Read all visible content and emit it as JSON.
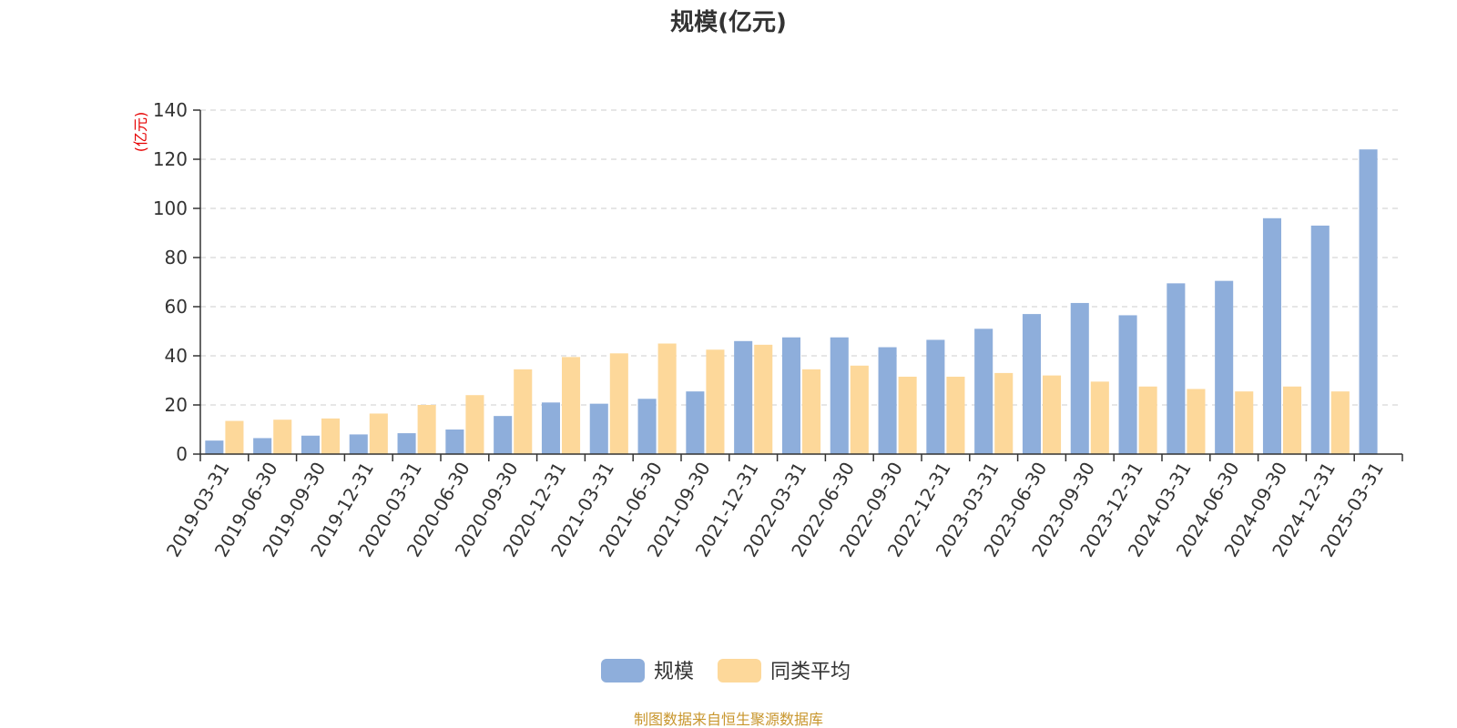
{
  "chart_data": {
    "type": "bar",
    "title": "规模(亿元)",
    "ylabel": "(亿元)",
    "ylim": [
      0,
      140
    ],
    "yticks": [
      0,
      20,
      40,
      60,
      80,
      100,
      120,
      140
    ],
    "grid": true,
    "legend_position": "bottom-center",
    "categories": [
      "2019-03-31",
      "2019-06-30",
      "2019-09-30",
      "2019-12-31",
      "2020-03-31",
      "2020-06-30",
      "2020-09-30",
      "2020-12-31",
      "2021-03-31",
      "2021-06-30",
      "2021-09-30",
      "2021-12-31",
      "2022-03-31",
      "2022-06-30",
      "2022-09-30",
      "2022-12-31",
      "2023-03-31",
      "2023-06-30",
      "2023-09-30",
      "2023-12-31",
      "2024-03-31",
      "2024-06-30",
      "2024-09-30",
      "2024-12-31",
      "2025-03-31"
    ],
    "series": [
      {
        "name": "规模",
        "color": "#8eaedb",
        "values": [
          5.5,
          6.5,
          7.5,
          8,
          8.5,
          10,
          15.5,
          21,
          20.5,
          22.5,
          25.5,
          46,
          47.5,
          47.5,
          43.5,
          46.5,
          51,
          57,
          61.5,
          56.5,
          69.5,
          70.5,
          96,
          93,
          124
        ]
      },
      {
        "name": "同类平均",
        "color": "#fdd89a",
        "values": [
          13.5,
          14,
          14.5,
          16.5,
          20,
          24,
          34.5,
          39.5,
          41,
          45,
          42.5,
          44.5,
          34.5,
          36,
          31.5,
          31.5,
          33,
          32,
          29.5,
          27.5,
          26.5,
          25.5,
          27.5,
          25.5,
          null
        ]
      }
    ]
  },
  "source_note": "制图数据来自恒生聚源数据库"
}
